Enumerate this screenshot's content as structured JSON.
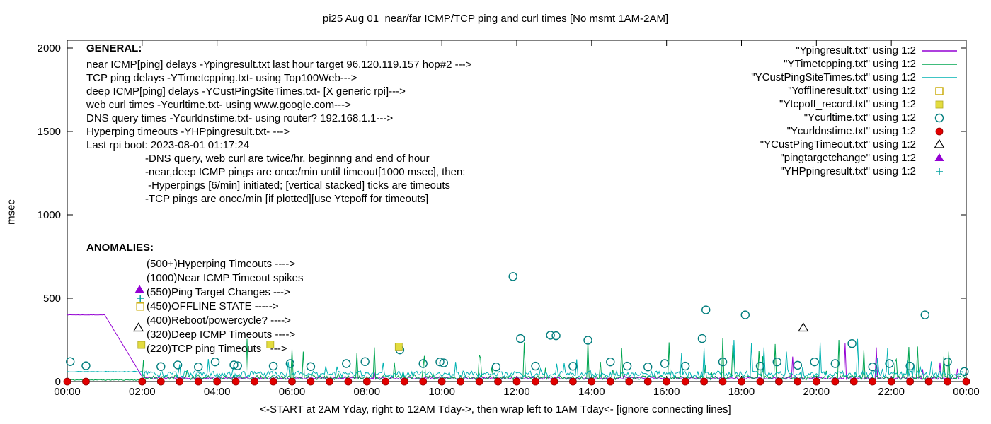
{
  "general": {
    "heading": "GENERAL:",
    "lines": [
      "near ICMP[ping] delays -Ypingresult.txt last hour target 96.120.119.157 hop#2 --->",
      "TCP ping delays -YTimetcpping.txt- using Top100Web--->",
      "deep ICMP[ping] delays -YCustPingSiteTimes.txt- [X generic rpi]--->",
      "web curl times -Ycurltime.txt- using www.google.com--->",
      "DNS query times -Ycurldnstime.txt- using router? 192.168.1.1--->",
      "Hyperping timeouts -YHPpingresult.txt- --->",
      "Last rpi boot: 2023-08-01 01:17:24"
    ],
    "notes": [
      "-DNS query, web curl are twice/hr, beginnng and end of hour",
      "-near,deep ICMP pings are once/min until timeout[1000 msec], then:",
      " -Hyperpings [6/min] initiated; [vertical stacked] ticks are timeouts",
      "-TCP pings are once/min [if plotted][use Ytcpoff for timeouts]"
    ]
  },
  "anomalies": {
    "heading": "ANOMALIES:",
    "lines": [
      "(500+)Hyperping Timeouts ---->",
      "(1000)Near ICMP Timeout spikes",
      "(550)Ping Target Changes --->",
      "(450)OFFLINE STATE ----->",
      "(400)Reboot/powercycle? ---->",
      "(320)Deep ICMP Timeouts ---->",
      "(220)TCP ping Timeouts   --->"
    ]
  },
  "legend": [
    {
      "label": "\"Ypingresult.txt\" using 1:2",
      "sample": "line",
      "color": "#9400d3"
    },
    {
      "label": "\"YTimetcpping.txt\" using 1:2",
      "sample": "line",
      "color": "#00a550"
    },
    {
      "label": "\"YCustPingSiteTimes.txt\" using 1:2",
      "sample": "line",
      "color": "#00b2b2"
    },
    {
      "label": "\"Yofflineresult.txt\" using 1:2",
      "sample": "square-open",
      "color": "#c8a800"
    },
    {
      "label": "\"Ytcpoff_record.txt\" using 1:2",
      "sample": "square-filled",
      "color": "#e3dc3f"
    },
    {
      "label": "\"Ycurltime.txt\" using 1:2",
      "sample": "circle-open",
      "color": "#007d7d"
    },
    {
      "label": "\"Ycurldnstime.txt\" using 1:2",
      "sample": "circle-filled",
      "color": "#e10000"
    },
    {
      "label": "\"YCustPingTimeout.txt\" using 1:2",
      "sample": "triangle-open",
      "color": "#000000"
    },
    {
      "label": "\"pingtargetchange\" using 1:2",
      "sample": "triangle-filled",
      "color": "#9400d3"
    },
    {
      "label": "\"YHPpingresult.txt\" using 1:2",
      "sample": "plus",
      "color": "#00a0a0"
    }
  ],
  "chart_data": {
    "type": "line",
    "title": "pi25 Aug 01  near/far ICMP/TCP ping and curl times [No msmt 1AM-2AM]",
    "xlabel": "<-START at 2AM Yday, right to 12AM Tday->, then wrap left to 1AM Tday<- [ignore connecting lines]",
    "ylabel": "msec",
    "ylim": [
      0,
      2000
    ],
    "yticks": [
      0,
      500,
      1000,
      1500,
      2000
    ],
    "xlim_hours": [
      0,
      24
    ],
    "xtick_hours": [
      0,
      2,
      4,
      6,
      8,
      10,
      12,
      14,
      16,
      18,
      20,
      22,
      24
    ],
    "xtick_labels": [
      "00:00",
      "02:00",
      "04:00",
      "06:00",
      "08:00",
      "10:00",
      "12:00",
      "14:00",
      "16:00",
      "18:00",
      "20:00",
      "22:00",
      "00:00"
    ],
    "grid": false,
    "legend_position": "top-right",
    "noise_lines": [
      {
        "name": "Ypingresult",
        "color": "#9400d3",
        "seed": 7,
        "baseline": 20,
        "noise": 6,
        "spike_prob": 0.006,
        "spike_max": 60,
        "segments": [
          {
            "from": 0,
            "to": 1,
            "value": 400,
            "noise": 1
          },
          {
            "from": 1,
            "to": 2,
            "value": 400,
            "value_end": 30,
            "noise": 1
          }
        ],
        "spikes": [
          [
            19.35,
            150
          ],
          [
            20.75,
            230
          ],
          [
            21.6,
            205
          ],
          [
            23.3,
            115
          ]
        ]
      },
      {
        "name": "YTimetcpping",
        "color": "#00a550",
        "seed": 11,
        "baseline": 24,
        "noise": 12,
        "spike_prob": 0.06,
        "spike_max": 200,
        "segments": [
          {
            "from": 0,
            "to": 2,
            "value": 10,
            "noise": 3
          }
        ],
        "spikes": [
          [
            4.8,
            255
          ],
          [
            6.3,
            180
          ],
          [
            8.2,
            205
          ],
          [
            11.0,
            160
          ],
          [
            12.2,
            235
          ],
          [
            13.9,
            245
          ],
          [
            14.8,
            200
          ],
          [
            16.05,
            235
          ],
          [
            17.5,
            260
          ],
          [
            18.9,
            225
          ],
          [
            20.6,
            250
          ],
          [
            22.7,
            210
          ],
          [
            23.4,
            150
          ]
        ]
      },
      {
        "name": "YCustPingSiteTimes",
        "color": "#00b2b2",
        "seed": 13,
        "baseline": 45,
        "noise": 18,
        "spike_prob": 0.05,
        "spike_max": 110,
        "segments": [
          {
            "from": 0,
            "to": 2,
            "value": 60,
            "noise": 2
          }
        ],
        "spikes": [
          [
            16.4,
            170
          ],
          [
            17.0,
            200
          ],
          [
            17.8,
            250
          ],
          [
            18.25,
            230
          ],
          [
            18.6,
            205
          ],
          [
            19.2,
            180
          ],
          [
            20.1,
            235
          ],
          [
            21.1,
            255
          ],
          [
            21.9,
            200
          ]
        ]
      }
    ],
    "point_series": {
      "curl_times": {
        "name": "Ycurltime",
        "shape": "circle-open",
        "color": "#007d7d",
        "points": [
          [
            0.08,
            120
          ],
          [
            0.5,
            95
          ],
          [
            2.5,
            90
          ],
          [
            2.95,
            100
          ],
          [
            3.5,
            88
          ],
          [
            3.95,
            118
          ],
          [
            4.45,
            100
          ],
          [
            4.55,
            95
          ],
          [
            5.5,
            93
          ],
          [
            5.95,
            108
          ],
          [
            6.5,
            90
          ],
          [
            7.45,
            108
          ],
          [
            7.95,
            120
          ],
          [
            8.88,
            190
          ],
          [
            9.5,
            108
          ],
          [
            9.95,
            118
          ],
          [
            10.05,
            112
          ],
          [
            11.45,
            88
          ],
          [
            11.9,
            630
          ],
          [
            12.1,
            258
          ],
          [
            12.5,
            93
          ],
          [
            12.9,
            278
          ],
          [
            13.05,
            275
          ],
          [
            13.5,
            92
          ],
          [
            13.9,
            248
          ],
          [
            14.5,
            118
          ],
          [
            14.95,
            93
          ],
          [
            15.5,
            88
          ],
          [
            15.95,
            108
          ],
          [
            16.5,
            93
          ],
          [
            16.95,
            258
          ],
          [
            17.05,
            430
          ],
          [
            17.5,
            118
          ],
          [
            18.1,
            400
          ],
          [
            18.5,
            93
          ],
          [
            18.95,
            118
          ],
          [
            19.5,
            98
          ],
          [
            19.95,
            118
          ],
          [
            20.5,
            108
          ],
          [
            20.95,
            228
          ],
          [
            21.5,
            88
          ],
          [
            21.95,
            108
          ],
          [
            22.5,
            93
          ],
          [
            22.9,
            400
          ],
          [
            23.5,
            118
          ],
          [
            23.95,
            60
          ]
        ]
      },
      "dns_times": {
        "name": "Ycurldnstime",
        "shape": "circle-filled",
        "color": "#e10000",
        "y": 0,
        "xs": [
          0,
          0.5,
          2,
          2.5,
          3,
          3.5,
          4,
          4.5,
          5,
          5.5,
          6,
          6.5,
          7,
          7.5,
          8,
          8.5,
          9,
          9.5,
          10,
          10.5,
          11,
          11.5,
          12,
          12.5,
          13,
          13.5,
          14,
          14.5,
          15,
          15.5,
          16,
          16.5,
          17,
          17.5,
          18,
          18.5,
          19,
          19.5,
          20,
          20.5,
          21,
          21.5,
          22,
          22.5,
          23,
          23.5,
          24
        ]
      },
      "tcp_timeouts": {
        "name": "Ytcpoff_record",
        "shape": "square-filled",
        "color": "#e3dc3f",
        "points": [
          [
            8.85,
            210
          ]
        ]
      },
      "deep_icmp_timeouts": {
        "name": "YCustPingTimeout",
        "shape": "triangle-open",
        "color": "#000000",
        "points": [
          [
            19.65,
            320
          ]
        ]
      },
      "hyperping_timeouts": {
        "name": "YHPpingresult",
        "shape": "plus",
        "color": "#00a0a0",
        "points": [
          [
            1.95,
            500
          ]
        ]
      }
    },
    "anomaly_markers": [
      {
        "shape": "triangle-filled",
        "color": "#9400d3",
        "x": 1.93,
        "y": 550
      },
      {
        "shape": "square-open",
        "color": "#c8a800",
        "x": 1.95,
        "y": 450
      },
      {
        "shape": "triangle-open",
        "color": "#000000",
        "x": 1.9,
        "y": 320
      },
      {
        "shape": "square-filled",
        "color": "#e3dc3f",
        "x": 1.98,
        "y": 220
      },
      {
        "shape": "square-filled",
        "color": "#e3dc3f",
        "x": 5.42,
        "y": 222
      }
    ]
  }
}
